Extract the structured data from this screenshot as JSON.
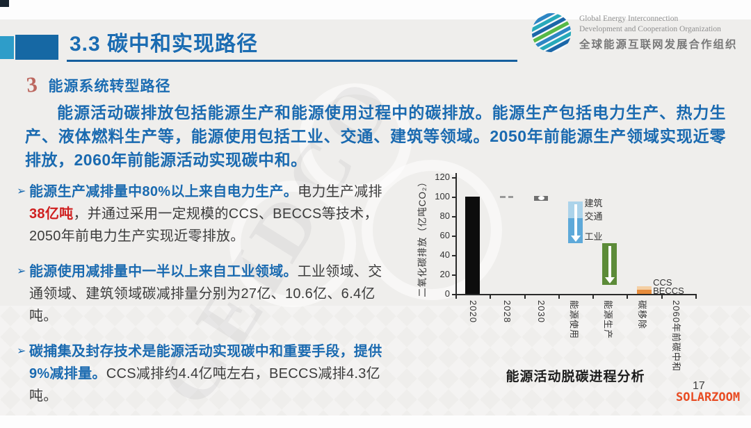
{
  "slide": {
    "title": "3.3 碳中和实现路径",
    "page_number": "17",
    "site_watermark": "SOLARZOOM",
    "background_watermark": "GEIDCO"
  },
  "logo": {
    "line1": "Global Energy Interconnection",
    "line2": "Development and Cooperation Organization",
    "line3": "全球能源互联网发展合作组织"
  },
  "section": {
    "number": "3",
    "heading": "能源系统转型路径",
    "paragraph": "能源活动碳排放包括能源生产和能源使用过程中的碳排放。能源生产包括电力生产、热力生产、液体燃料生产等，能源使用包括工业、交通、建筑等领域。2050年前能源生产领域实现近零排放，2060年前能源活动实现碳中和。"
  },
  "bullets": [
    {
      "lead": "能源生产减排量中80%以上来自电力生产。",
      "body_pre": "电力生产减排",
      "highlight": "38亿吨",
      "body_post": "，并通过采用一定规模的CCS、BECCS等技术，2050年前电力生产实现近零排放。"
    },
    {
      "lead": "能源使用减排量中一半以上来自工业领域。",
      "body_pre": "工业领域、交通领域、建筑领域碳减排量分别为27亿、10.6亿、6.4亿吨。",
      "highlight": "",
      "body_post": ""
    },
    {
      "lead": "碳捕集及封存技术是能源活动实现碳中和重要手段，提供9%减排量。",
      "body_pre": "CCS减排约4.4亿吨左右，BECCS减排4.3亿吨。",
      "highlight": "",
      "body_post": ""
    }
  ],
  "chart_data": {
    "type": "bar",
    "subtype": "waterfall",
    "title": "能源活动脱碳进程分析",
    "ylabel": "二氧化碳排放（亿吨CO₂）",
    "ylim": [
      0,
      120
    ],
    "ytick_step": 20,
    "categories": [
      "2020",
      "2028",
      "2030",
      "能源使用",
      "能源生产",
      "碳移除",
      "2060年前碳中和"
    ],
    "bars": [
      {
        "cat": "2020",
        "style": "solid",
        "color": "#0d0d0d",
        "from": 0,
        "to": 100
      },
      {
        "cat": "2028",
        "style": "dashes",
        "color": "#999999",
        "from": 99,
        "to": 101
      },
      {
        "cat": "2030",
        "style": "marker",
        "color": "#6f6f6f",
        "from": 96,
        "to": 101
      },
      {
        "cat": "能源使用",
        "style": "segments",
        "arrow": true,
        "segments": [
          {
            "label": "建筑、交通",
            "from": 78,
            "to": 95,
            "color": "#abd3ea"
          },
          {
            "label": "工业",
            "from": 52,
            "to": 78,
            "color": "#5ea9d9"
          }
        ]
      },
      {
        "cat": "能源生产",
        "style": "solid",
        "arrow": true,
        "color": "#5c8b38",
        "from": 9,
        "to": 52
      },
      {
        "cat": "碳移除",
        "style": "segments",
        "segments": [
          {
            "label": "CCS",
            "from": 4,
            "to": 8,
            "color": "#f4cfa4"
          },
          {
            "label": "BECCS",
            "from": 0,
            "to": 4,
            "color": "#e78c3c"
          }
        ]
      },
      {
        "cat": "2060年前碳中和",
        "style": "none",
        "from": 0,
        "to": 0
      }
    ],
    "annotations": [
      {
        "text": "建筑",
        "cat": 3,
        "value": 94
      },
      {
        "text": "交通",
        "cat": 3,
        "value": 81
      },
      {
        "text": "工业",
        "cat": 3,
        "value": 60
      },
      {
        "text": "CCS",
        "cat": 5,
        "value": 11
      },
      {
        "text": "BECCS",
        "cat": 5,
        "value": 2.5
      }
    ]
  },
  "colors": {
    "title_blue": "#1b6cb2",
    "body_blue": "#1a6ab0",
    "highlight_red": "#cf1f1f",
    "accent_teal": "#2e9dc9",
    "accent_navy": "#1668a4",
    "watermark_orange": "#e84b22"
  }
}
